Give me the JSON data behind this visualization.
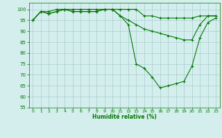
{
  "hours": [
    0,
    1,
    2,
    3,
    4,
    5,
    6,
    7,
    8,
    9,
    10,
    11,
    12,
    13,
    14,
    15,
    16,
    17,
    18,
    19,
    20,
    21,
    22,
    23
  ],
  "hum_low": [
    95,
    99,
    98,
    99,
    100,
    99,
    99,
    99,
    99,
    100,
    100,
    97,
    93,
    75,
    73,
    69,
    64,
    65,
    66,
    67,
    74,
    87,
    94,
    96
  ],
  "hum_mid": [
    95,
    99,
    98,
    99,
    100,
    99,
    99,
    99,
    99,
    100,
    100,
    97,
    95,
    93,
    91,
    90,
    89,
    88,
    87,
    86,
    86,
    93,
    97,
    97
  ],
  "hum_high": [
    95,
    99,
    99,
    100,
    100,
    100,
    100,
    100,
    100,
    100,
    100,
    100,
    100,
    100,
    97,
    97,
    96,
    96,
    96,
    96,
    96,
    97,
    97,
    97
  ],
  "line_color": "#007700",
  "bg_color": "#d4eeee",
  "grid_color": "#aacccc",
  "xlabel": "Humidité relative (%)",
  "xlabel_color": "#007700",
  "tick_color": "#007700",
  "ylim": [
    55,
    103
  ],
  "yticks": [
    55,
    60,
    65,
    70,
    75,
    80,
    85,
    90,
    95,
    100
  ],
  "xlim": [
    -0.5,
    23.5
  ],
  "figsize": [
    3.2,
    2.0
  ],
  "dpi": 100
}
